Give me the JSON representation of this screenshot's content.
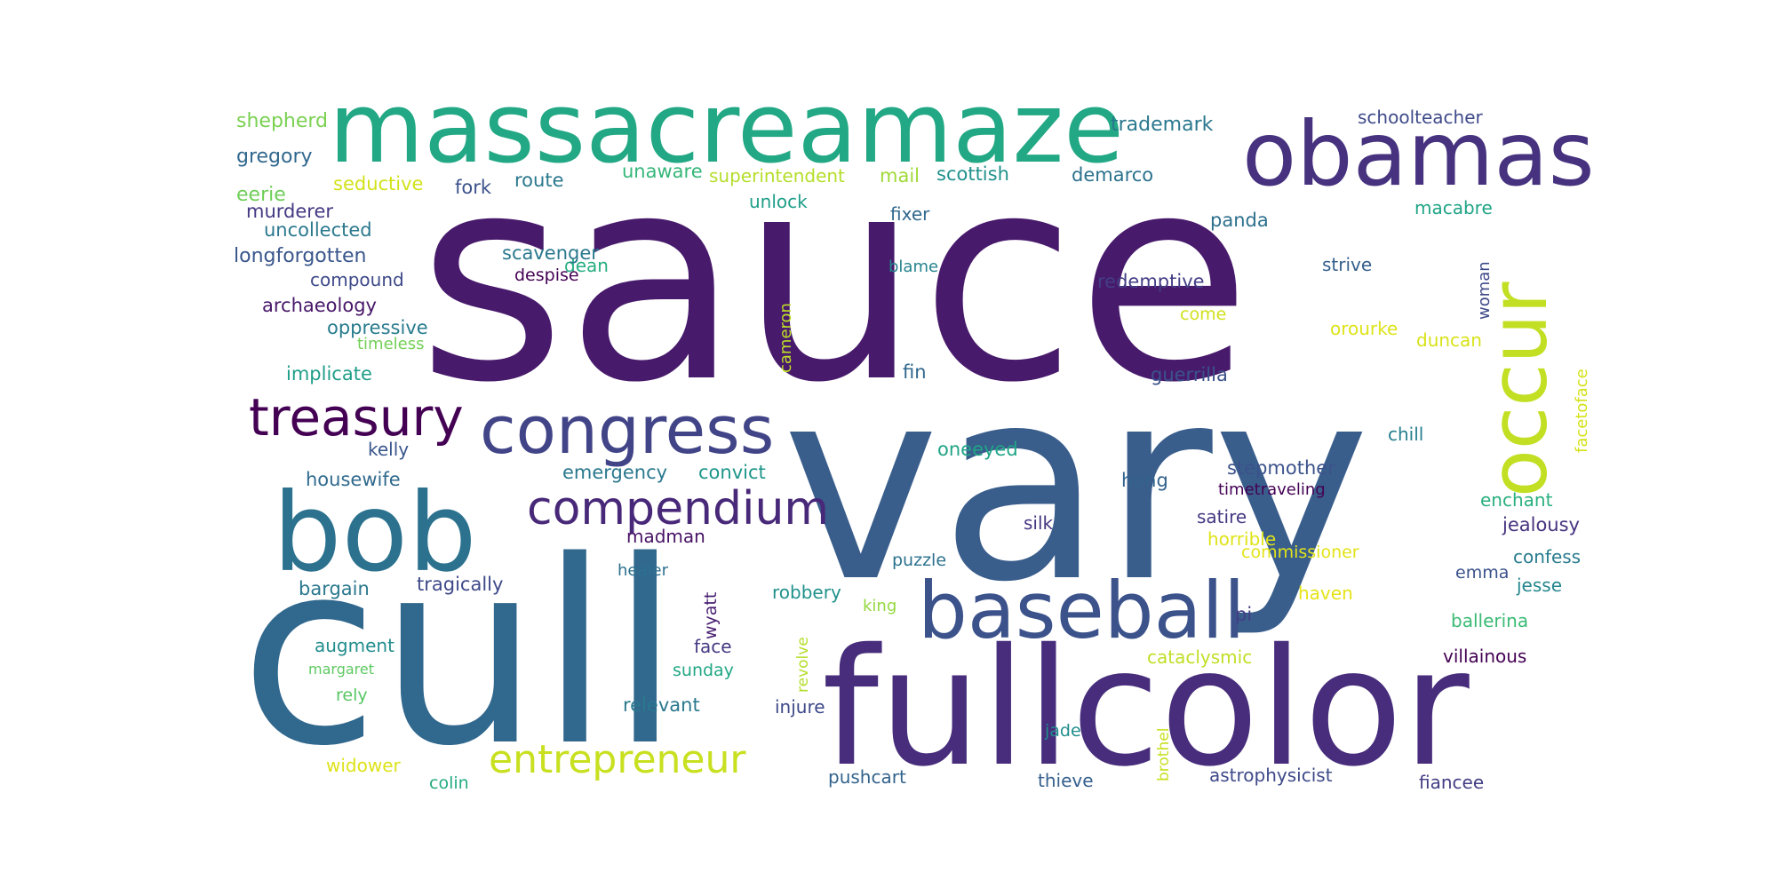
{
  "word_cloud": {
    "words": [
      {
        "text": "sauce",
        "color": "#481a6c"
      },
      {
        "text": "vary",
        "color": "#3a5e8c"
      },
      {
        "text": "cull",
        "color": "#31688e"
      },
      {
        "text": "fullcolor",
        "color": "#472d7b"
      },
      {
        "text": "massacreamaze",
        "color": "#22a884"
      },
      {
        "text": "obamas",
        "color": "#46327e"
      },
      {
        "text": "bob",
        "color": "#2c728e"
      },
      {
        "text": "baseball",
        "color": "#3b528b"
      },
      {
        "text": "congress",
        "color": "#414487"
      },
      {
        "text": "occur",
        "color": "#c2df23"
      },
      {
        "text": "treasury",
        "color": "#440154"
      },
      {
        "text": "compendium",
        "color": "#482878"
      },
      {
        "text": "entrepreneur",
        "color": "#c8e020"
      },
      {
        "text": "shepherd",
        "color": "#7ad151"
      },
      {
        "text": "trademark",
        "color": "#2a788e"
      },
      {
        "text": "schoolteacher",
        "color": "#3e4a89"
      },
      {
        "text": "gregory",
        "color": "#31688e"
      },
      {
        "text": "eerie",
        "color": "#6ece58"
      },
      {
        "text": "seductive",
        "color": "#d2e21b"
      },
      {
        "text": "fork",
        "color": "#3b528b"
      },
      {
        "text": "route",
        "color": "#2a788e"
      },
      {
        "text": "unaware",
        "color": "#35b779"
      },
      {
        "text": "superintendent",
        "color": "#b5de2b"
      },
      {
        "text": "mail",
        "color": "#a0da39"
      },
      {
        "text": "scottish",
        "color": "#21918c"
      },
      {
        "text": "demarco",
        "color": "#2c728e"
      },
      {
        "text": "murderer",
        "color": "#443983"
      },
      {
        "text": "unlock",
        "color": "#1f9e89"
      },
      {
        "text": "fixer",
        "color": "#31688e"
      },
      {
        "text": "macabre",
        "color": "#20a486"
      },
      {
        "text": "uncollected",
        "color": "#2a788e"
      },
      {
        "text": "dean",
        "color": "#26ad81"
      },
      {
        "text": "panda",
        "color": "#2d708e"
      },
      {
        "text": "longforgotten",
        "color": "#39568c"
      },
      {
        "text": "scavenger",
        "color": "#2a788e"
      },
      {
        "text": "blame",
        "color": "#25838e"
      },
      {
        "text": "strive",
        "color": "#355f8d"
      },
      {
        "text": "compound",
        "color": "#3e4989"
      },
      {
        "text": "despise",
        "color": "#440154"
      },
      {
        "text": "cameron",
        "color": "#bddf26"
      },
      {
        "text": "redemptive",
        "color": "#433e85"
      },
      {
        "text": "woman",
        "color": "#3e4989"
      },
      {
        "text": "archaeology",
        "color": "#481769"
      },
      {
        "text": "come",
        "color": "#d0e11c"
      },
      {
        "text": "oppressive",
        "color": "#287c8e"
      },
      {
        "text": "orourke",
        "color": "#dde318"
      },
      {
        "text": "duncan",
        "color": "#d8e219"
      },
      {
        "text": "facetoface",
        "color": "#d5e21a"
      },
      {
        "text": "timeless",
        "color": "#73d056"
      },
      {
        "text": "fin",
        "color": "#31688e"
      },
      {
        "text": "guerrilla",
        "color": "#3b528b"
      },
      {
        "text": "implicate",
        "color": "#1f9e89"
      },
      {
        "text": "chill",
        "color": "#277f8e"
      },
      {
        "text": "kelly",
        "color": "#39568c"
      },
      {
        "text": "oneeyed",
        "color": "#20a486"
      },
      {
        "text": "housewife",
        "color": "#306a8e"
      },
      {
        "text": "emergency",
        "color": "#2a788e"
      },
      {
        "text": "convict",
        "color": "#1f968b"
      },
      {
        "text": "hong",
        "color": "#33638d"
      },
      {
        "text": "stepmother",
        "color": "#3b528b"
      },
      {
        "text": "timetraveling",
        "color": "#440154"
      },
      {
        "text": "enchant",
        "color": "#29af7f"
      },
      {
        "text": "jealousy",
        "color": "#46337f"
      },
      {
        "text": "madman",
        "color": "#471365"
      },
      {
        "text": "silk",
        "color": "#453781"
      },
      {
        "text": "satire",
        "color": "#453882"
      },
      {
        "text": "horrible",
        "color": "#dfe318"
      },
      {
        "text": "healer",
        "color": "#2d708e"
      },
      {
        "text": "puzzle",
        "color": "#2c728e"
      },
      {
        "text": "commissioner",
        "color": "#e2e418"
      },
      {
        "text": "confess",
        "color": "#287c8e"
      },
      {
        "text": "emma",
        "color": "#3b528b"
      },
      {
        "text": "bargain",
        "color": "#2a788e"
      },
      {
        "text": "tragically",
        "color": "#3e4989"
      },
      {
        "text": "wyatt",
        "color": "#481f70"
      },
      {
        "text": "robbery",
        "color": "#21918c"
      },
      {
        "text": "haven",
        "color": "#e5e419"
      },
      {
        "text": "jesse",
        "color": "#24868e"
      },
      {
        "text": "king",
        "color": "#95d840"
      },
      {
        "text": "pi",
        "color": "#424086"
      },
      {
        "text": "ballerina",
        "color": "#3bbb75"
      },
      {
        "text": "revolve",
        "color": "#b5de2b"
      },
      {
        "text": "augment",
        "color": "#228d8d"
      },
      {
        "text": "face",
        "color": "#443a83"
      },
      {
        "text": "margaret",
        "color": "#5ec962"
      },
      {
        "text": "sunday",
        "color": "#22a785"
      },
      {
        "text": "cataclysmic",
        "color": "#c0df25"
      },
      {
        "text": "villainous",
        "color": "#440154"
      },
      {
        "text": "rely",
        "color": "#58c765"
      },
      {
        "text": "relevant",
        "color": "#2a788e"
      },
      {
        "text": "injure",
        "color": "#3e4989"
      },
      {
        "text": "brothel",
        "color": "#c8e020"
      },
      {
        "text": "jade",
        "color": "#228d8d"
      },
      {
        "text": "widower",
        "color": "#dde318"
      },
      {
        "text": "pushcart",
        "color": "#33638d"
      },
      {
        "text": "thieve",
        "color": "#355f8d"
      },
      {
        "text": "astrophysicist",
        "color": "#3e4a89"
      },
      {
        "text": "fiancee",
        "color": "#433e85"
      },
      {
        "text": "colin",
        "color": "#25ab82"
      }
    ]
  }
}
